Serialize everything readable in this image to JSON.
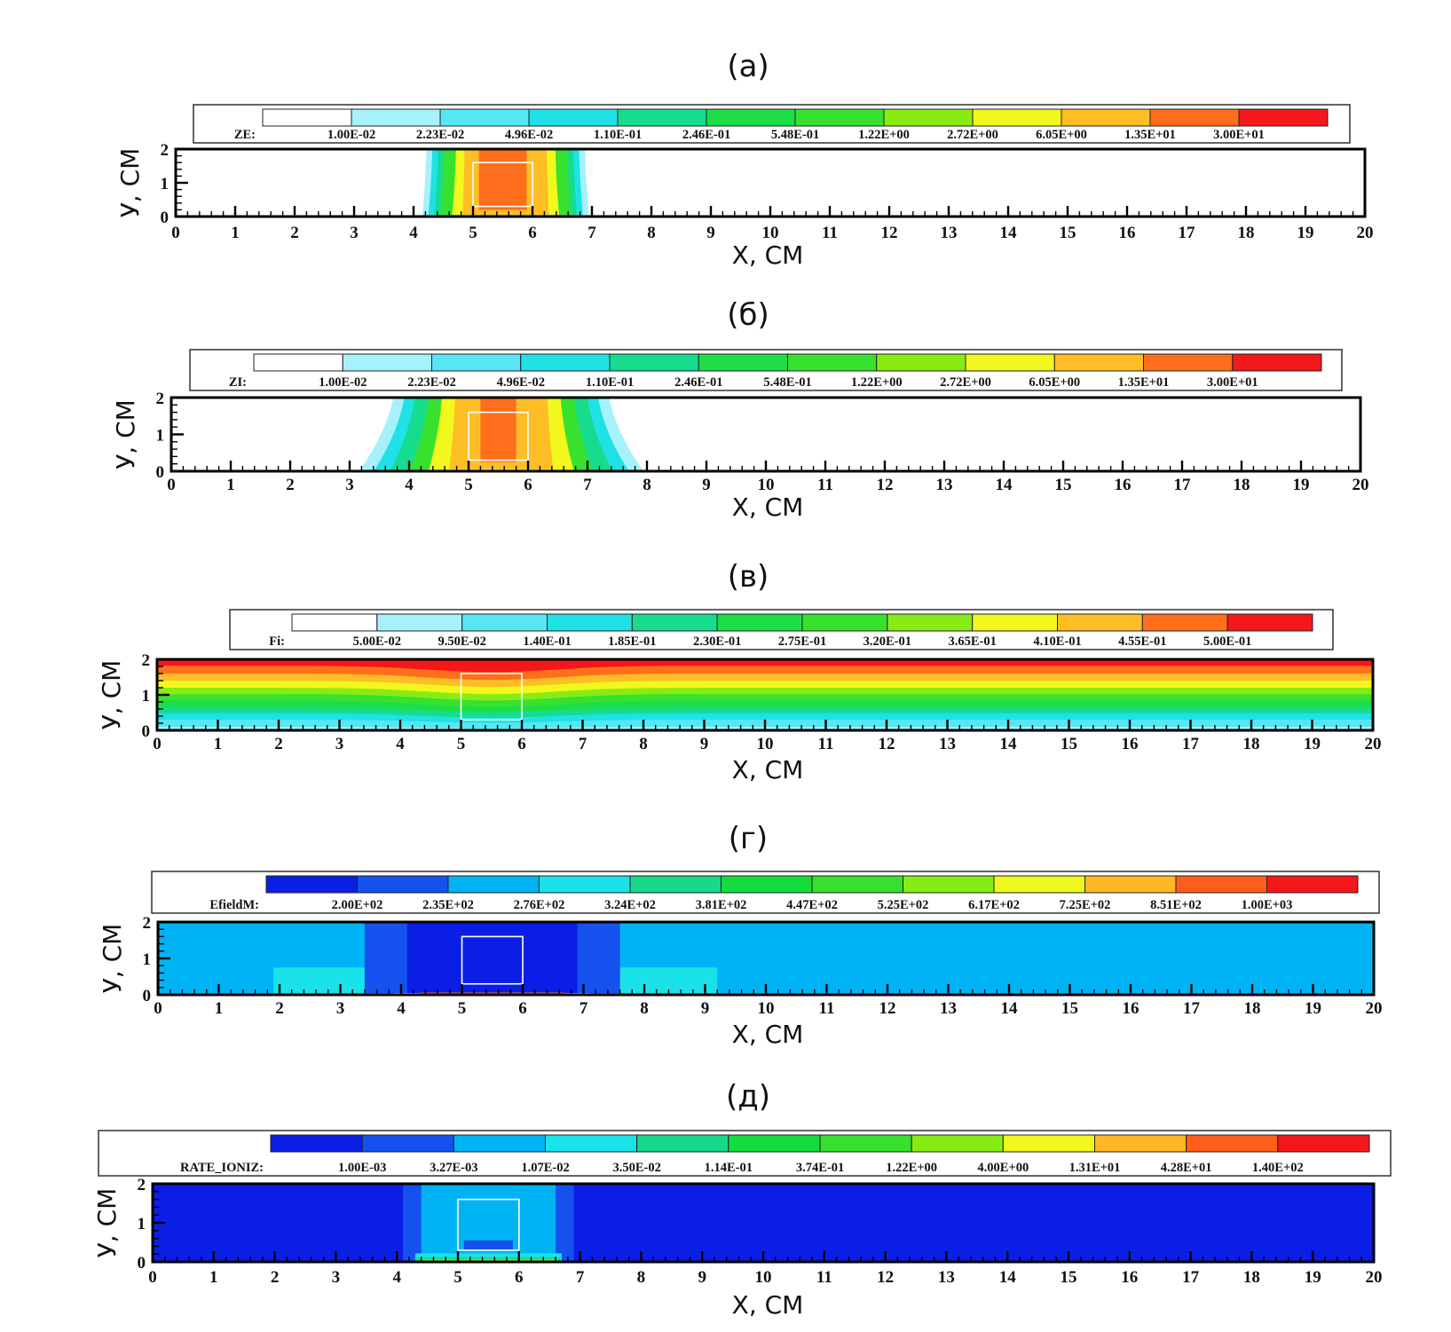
{
  "chart_data": [
    {
      "type": "heatmap",
      "title": "(а)",
      "legend_label": "ZE:",
      "legend_levels": [
        "1.00E-02",
        "2.23E-02",
        "4.96E-02",
        "1.10E-01",
        "2.46E-01",
        "5.48E-01",
        "1.22E+00",
        "2.72E+00",
        "6.05E+00",
        "1.35E+01",
        "3.00E+01"
      ],
      "legend_colors": [
        "#ffffff",
        "#a6f2fc",
        "#56e6f4",
        "#1fe1e6",
        "#16dc8e",
        "#1ede48",
        "#39e12f",
        "#88ec14",
        "#f2f71d",
        "#ffbd26",
        "#ff6e1b",
        "#f5181b"
      ],
      "xlabel": "X, CM",
      "ylabel": "У, CM",
      "xlim": [
        0,
        20
      ],
      "ylim": [
        0,
        2
      ],
      "x_ticks": [
        "0",
        "1",
        "2",
        "3",
        "4",
        "5",
        "6",
        "7",
        "8",
        "9",
        "10",
        "11",
        "12",
        "13",
        "14",
        "15",
        "16",
        "17",
        "18",
        "19",
        "20"
      ],
      "y_ticks": [
        "0",
        "1",
        "2"
      ],
      "background_level": 0,
      "regions": [
        {
          "level": 1,
          "x": [
            4.2,
            6.9
          ],
          "y": [
            0.05,
            2.0
          ],
          "bulge": 0.1
        },
        {
          "level": 3,
          "x": [
            4.3,
            6.8
          ],
          "y": [
            0.05,
            2.0
          ],
          "bulge": 0.1
        },
        {
          "level": 4,
          "x": [
            4.4,
            6.7
          ],
          "y": [
            0.05,
            2.0
          ],
          "bulge": 0.1
        },
        {
          "level": 6,
          "x": [
            4.5,
            6.6
          ],
          "y": [
            0.05,
            2.0
          ],
          "bulge": 0.1
        },
        {
          "level": 8,
          "x": [
            4.7,
            6.4
          ],
          "y": [
            0.05,
            2.0
          ],
          "bulge": 0.1
        },
        {
          "level": 9,
          "x": [
            4.85,
            6.25
          ],
          "y": [
            0.05,
            2.0
          ],
          "bulge": 0.05
        },
        {
          "level": 10,
          "x": [
            5.1,
            5.9
          ],
          "y": [
            0.2,
            2.0
          ],
          "bulge": 0.0
        }
      ],
      "electrode": {
        "x": [
          5,
          6
        ],
        "y": [
          0.3,
          1.6
        ]
      }
    },
    {
      "type": "heatmap",
      "title": "(б)",
      "legend_label": "ZI:",
      "legend_levels": [
        "1.00E-02",
        "2.23E-02",
        "4.96E-02",
        "1.10E-01",
        "2.46E-01",
        "5.48E-01",
        "1.22E+00",
        "2.72E+00",
        "6.05E+00",
        "1.35E+01",
        "3.00E+01"
      ],
      "legend_colors": [
        "#ffffff",
        "#a6f2fc",
        "#56e6f4",
        "#1fe1e6",
        "#16dc8e",
        "#1ede48",
        "#39e12f",
        "#88ec14",
        "#f2f71d",
        "#ffbd26",
        "#ff6e1b",
        "#f5181b"
      ],
      "xlabel": "X, CM",
      "ylabel": "У, CM",
      "xlim": [
        0,
        20
      ],
      "ylim": [
        0,
        2
      ],
      "x_ticks": [
        "0",
        "1",
        "2",
        "3",
        "4",
        "5",
        "6",
        "7",
        "8",
        "9",
        "10",
        "11",
        "12",
        "13",
        "14",
        "15",
        "16",
        "17",
        "18",
        "19",
        "20"
      ],
      "y_ticks": [
        "0",
        "1",
        "2"
      ],
      "background_level": 0,
      "regions": [
        {
          "level": 1,
          "x": [
            3.6,
            7.5
          ],
          "y": [
            0.0,
            2.0
          ],
          "bulge": 0.9
        },
        {
          "level": 3,
          "x": [
            3.8,
            7.3
          ],
          "y": [
            0.0,
            2.0
          ],
          "bulge": 0.8
        },
        {
          "level": 4,
          "x": [
            4.0,
            7.1
          ],
          "y": [
            0.0,
            2.0
          ],
          "bulge": 0.65
        },
        {
          "level": 6,
          "x": [
            4.25,
            6.85
          ],
          "y": [
            0.0,
            2.0
          ],
          "bulge": 0.5
        },
        {
          "level": 8,
          "x": [
            4.5,
            6.6
          ],
          "y": [
            0.0,
            2.0
          ],
          "bulge": 0.35
        },
        {
          "level": 9,
          "x": [
            4.75,
            6.35
          ],
          "y": [
            0.05,
            2.0
          ],
          "bulge": 0.15
        },
        {
          "level": 10,
          "x": [
            5.2,
            5.8
          ],
          "y": [
            0.25,
            2.0
          ],
          "bulge": 0.0
        }
      ],
      "electrode": {
        "x": [
          5,
          6
        ],
        "y": [
          0.3,
          1.6
        ]
      }
    },
    {
      "type": "heatmap",
      "title": "(в)",
      "legend_label": "Fi:",
      "legend_levels": [
        "5.00E-02",
        "9.50E-02",
        "1.40E-01",
        "1.85E-01",
        "2.30E-01",
        "2.75E-01",
        "3.20E-01",
        "3.65E-01",
        "4.10E-01",
        "4.55E-01",
        "5.00E-01"
      ],
      "legend_colors": [
        "#ffffff",
        "#a6f2fc",
        "#56e6f4",
        "#1fe1e6",
        "#16dc8e",
        "#1ede48",
        "#39e12f",
        "#88ec14",
        "#f2f71d",
        "#ffbd26",
        "#ff6e1b",
        "#f5181b"
      ],
      "xlabel": "X, CM",
      "ylabel": "У, CM",
      "xlim": [
        0,
        20
      ],
      "ylim": [
        0,
        2
      ],
      "x_ticks": [
        "0",
        "1",
        "2",
        "3",
        "4",
        "5",
        "6",
        "7",
        "8",
        "9",
        "10",
        "11",
        "12",
        "13",
        "14",
        "15",
        "16",
        "17",
        "18",
        "19",
        "20"
      ],
      "y_ticks": [
        "0",
        "1",
        "2"
      ],
      "layered": true,
      "layer_bottoms": [
        0.0,
        0.1,
        0.3,
        0.48,
        0.66,
        0.84,
        1.02,
        1.2,
        1.4,
        1.6,
        1.82
      ],
      "dip": {
        "center": 5.5,
        "width": 1.5,
        "depth": 0.18
      },
      "electrode": {
        "x": [
          5,
          6
        ],
        "y": [
          0.3,
          1.6
        ]
      }
    },
    {
      "type": "heatmap",
      "title": "(г)",
      "legend_label": "EfieldM:",
      "legend_levels": [
        "2.00E+02",
        "2.35E+02",
        "2.76E+02",
        "3.24E+02",
        "3.81E+02",
        "4.47E+02",
        "5.25E+02",
        "6.17E+02",
        "7.25E+02",
        "8.51E+02",
        "1.00E+03"
      ],
      "legend_colors": [
        "#0b1ee6",
        "#1551ee",
        "#00b3f5",
        "#19e3e8",
        "#18d88c",
        "#14dc3e",
        "#36e02d",
        "#87ec14",
        "#f0f71c",
        "#ffb824",
        "#ff5e1a",
        "#f4171a"
      ],
      "xlabel": "X, CM",
      "ylabel": "У, CM",
      "xlim": [
        0,
        20
      ],
      "ylim": [
        0,
        2
      ],
      "x_ticks": [
        "0",
        "1",
        "2",
        "3",
        "4",
        "5",
        "6",
        "7",
        "8",
        "9",
        "10",
        "11",
        "12",
        "13",
        "14",
        "15",
        "16",
        "17",
        "18",
        "19",
        "20"
      ],
      "y_ticks": [
        "0",
        "1",
        "2"
      ],
      "background_level": 2,
      "regions": [
        {
          "level": 3,
          "x": [
            1.9,
            4.6
          ],
          "y": [
            0.0,
            0.75
          ],
          "bulge": 0.0
        },
        {
          "level": 3,
          "x": [
            6.4,
            9.2
          ],
          "y": [
            0.0,
            0.75
          ],
          "bulge": 0.0
        },
        {
          "level": 5,
          "x": [
            3.4,
            4.7
          ],
          "y": [
            0.0,
            0.5
          ],
          "bulge": 0.0
        },
        {
          "level": 5,
          "x": [
            6.3,
            7.6
          ],
          "y": [
            0.0,
            0.5
          ],
          "bulge": 0.0
        },
        {
          "level": 8,
          "x": [
            3.9,
            4.6
          ],
          "y": [
            0.0,
            0.28
          ],
          "bulge": 0.0
        },
        {
          "level": 8,
          "x": [
            6.4,
            7.1
          ],
          "y": [
            0.0,
            0.28
          ],
          "bulge": 0.0
        },
        {
          "level": 1,
          "x": [
            3.4,
            7.6
          ],
          "y": [
            0.05,
            2.0
          ],
          "bulge": 0.0
        },
        {
          "level": 0,
          "x": [
            4.1,
            6.9
          ],
          "y": [
            0.05,
            2.0
          ],
          "bulge": 0.0
        },
        {
          "level": 10,
          "x": [
            4.3,
            6.7
          ],
          "y": [
            0.0,
            0.06
          ],
          "bulge": 0.0
        }
      ],
      "electrode": {
        "x": [
          5,
          6
        ],
        "y": [
          0.3,
          1.6
        ]
      }
    },
    {
      "type": "heatmap",
      "title": "(д)",
      "legend_label": "RATE_IONIZ:",
      "legend_levels": [
        "1.00E-03",
        "3.27E-03",
        "1.07E-02",
        "3.50E-02",
        "1.14E-01",
        "3.74E-01",
        "1.22E+00",
        "4.00E+00",
        "1.31E+01",
        "4.28E+01",
        "1.40E+02"
      ],
      "legend_colors": [
        "#0b1ee6",
        "#1551ee",
        "#00b3f5",
        "#19e3e8",
        "#18d88c",
        "#14dc3e",
        "#36e02d",
        "#87ec14",
        "#f0f71c",
        "#ffb824",
        "#ff5e1a",
        "#f4171a"
      ],
      "xlabel": "X, CM",
      "ylabel": "У, CM",
      "xlim": [
        0,
        20
      ],
      "ylim": [
        0,
        2
      ],
      "x_ticks": [
        "0",
        "1",
        "2",
        "3",
        "4",
        "5",
        "6",
        "7",
        "8",
        "9",
        "10",
        "11",
        "12",
        "13",
        "14",
        "15",
        "16",
        "17",
        "18",
        "19",
        "20"
      ],
      "y_ticks": [
        "0",
        "1",
        "2"
      ],
      "background_level": 0,
      "regions": [
        {
          "level": 1,
          "x": [
            4.1,
            6.9
          ],
          "y": [
            0.0,
            2.0
          ],
          "bulge": 0.0
        },
        {
          "level": 2,
          "x": [
            4.4,
            6.6
          ],
          "y": [
            0.05,
            2.0
          ],
          "bulge": 0.0
        },
        {
          "level": 3,
          "x": [
            4.3,
            6.7
          ],
          "y": [
            0.0,
            0.22
          ],
          "bulge": 0.0
        },
        {
          "level": 4,
          "x": [
            4.3,
            6.7
          ],
          "y": [
            0.0,
            0.12
          ],
          "bulge": 0.0
        },
        {
          "level": 7,
          "x": [
            4.4,
            6.6
          ],
          "y": [
            0.0,
            0.06
          ],
          "bulge": 0.0
        },
        {
          "level": 1,
          "x": [
            5.1,
            5.9
          ],
          "y": [
            0.3,
            0.55
          ],
          "bulge": 0.0
        }
      ],
      "electrode": {
        "x": [
          5,
          6
        ],
        "y": [
          0.3,
          1.6
        ]
      }
    }
  ]
}
